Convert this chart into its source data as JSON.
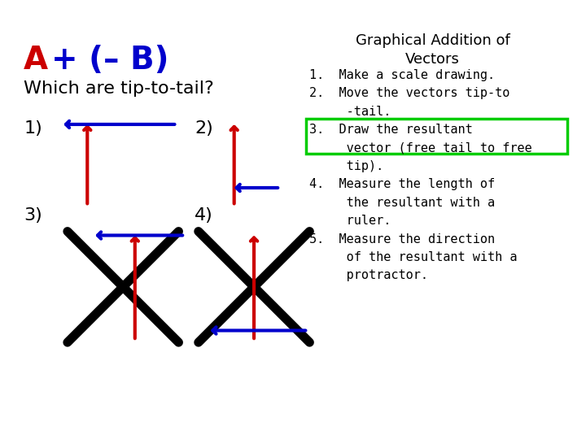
{
  "title_left": "A + (– B)",
  "title_right": "Graphical Addition of\nVectors",
  "subtitle": "Which are tip-to-tail?",
  "bg_color": "#ffffff",
  "red": "#cc0000",
  "blue": "#0000cc",
  "black": "#000000",
  "green_box": "#00cc00",
  "right_text": "1.  Make a scale drawing.\n2.  Move the vectors tip-to\n     -tail.\n3.  Draw the resultant\n     vector (free tail to free\n     tip).\n4.  Measure the length of\n     the resultant with a\n     ruler.\n5.  Measure the direction\n     of the resultant with a\n     protractor.",
  "labels": [
    "1)",
    "2)",
    "3)",
    "4)"
  ]
}
